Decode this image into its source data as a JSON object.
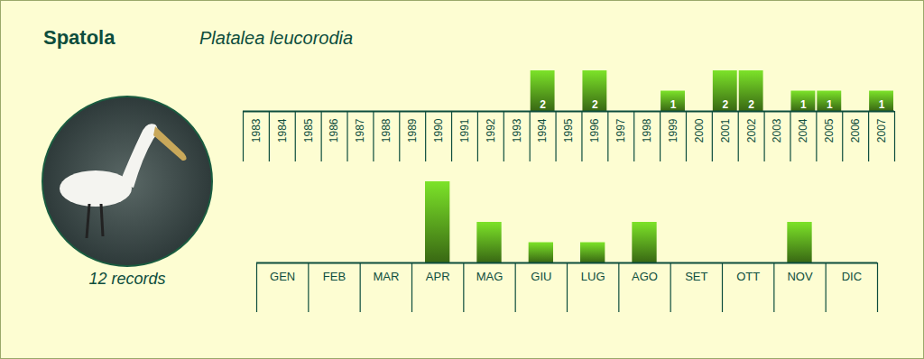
{
  "chart_data": [
    {
      "type": "bar",
      "title": "Spatola",
      "subtitle": "Platalea leucorodia",
      "annotations": [
        "12 records"
      ],
      "categories": [
        "1983",
        "1984",
        "1985",
        "1986",
        "1987",
        "1988",
        "1989",
        "1990",
        "1991",
        "1992",
        "1993",
        "1994",
        "1995",
        "1996",
        "1997",
        "1998",
        "1999",
        "2000",
        "2001",
        "2002",
        "2003",
        "2004",
        "2005",
        "2006",
        "2007"
      ],
      "values": [
        0,
        0,
        0,
        0,
        0,
        0,
        0,
        0,
        0,
        0,
        0,
        2,
        0,
        2,
        0,
        0,
        1,
        0,
        2,
        2,
        0,
        1,
        1,
        0,
        1
      ],
      "color": "#5aa51e",
      "ylim": [
        0,
        2
      ],
      "data_labels": true,
      "tick_labels": "x"
    },
    {
      "type": "bar",
      "categories": [
        "GEN",
        "FEB",
        "MAR",
        "APR",
        "MAG",
        "GIU",
        "LUG",
        "AGO",
        "SET",
        "OTT",
        "NOV",
        "DIC"
      ],
      "values": [
        0,
        0,
        0,
        4,
        2,
        1,
        1,
        2,
        0,
        0,
        2,
        0
      ],
      "color": "#5aa51e",
      "ylim": [
        0,
        4
      ],
      "tick_labels": "x"
    }
  ]
}
